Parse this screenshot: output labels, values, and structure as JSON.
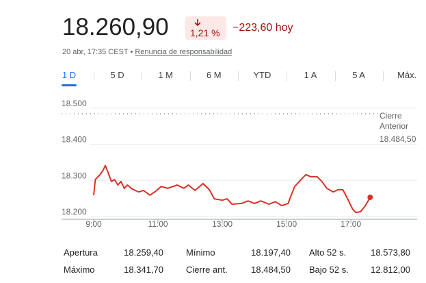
{
  "header": {
    "price": "18.260,90",
    "change_pct": "1,21 %",
    "change_abs": "−223,60 hoy",
    "timestamp": "20 abr, 17:35 CEST",
    "separator": "•",
    "disclaimer": "Renuncia de responsabilidad"
  },
  "tabs": [
    "1 D",
    "5 D",
    "1 M",
    "6 M",
    "YTD",
    "1 A",
    "5 A",
    "Máx."
  ],
  "active_tab": 0,
  "chart_data": {
    "type": "line",
    "color": "#d93025",
    "x": [
      9.0,
      9.05,
      9.2,
      9.3,
      9.36,
      9.45,
      9.55,
      9.65,
      9.75,
      9.85,
      9.95,
      10.05,
      10.2,
      10.4,
      10.55,
      10.75,
      10.9,
      11.1,
      11.3,
      11.6,
      11.8,
      11.95,
      12.15,
      12.4,
      12.6,
      12.75,
      13.0,
      13.15,
      13.3,
      13.6,
      13.8,
      14.0,
      14.2,
      14.45,
      14.65,
      14.85,
      15.05,
      15.1,
      15.25,
      15.45,
      15.6,
      15.75,
      15.95,
      16.1,
      16.25,
      16.45,
      16.6,
      16.75,
      16.9,
      17.05,
      17.15,
      17.3,
      17.45,
      17.6
    ],
    "values": [
      18259,
      18302,
      18316,
      18329,
      18341,
      18321,
      18297,
      18302,
      18287,
      18297,
      18278,
      18287,
      18276,
      18268,
      18272,
      18259,
      18268,
      18283,
      18278,
      18287,
      18278,
      18287,
      18272,
      18291,
      18274,
      18249,
      18245,
      18249,
      18234,
      18236,
      18243,
      18236,
      18243,
      18234,
      18241,
      18230,
      18236,
      18249,
      18283,
      18302,
      18316,
      18310,
      18310,
      18297,
      18278,
      18268,
      18274,
      18274,
      18249,
      18221,
      18211,
      18213,
      18230,
      18253
    ],
    "xlim": [
      8.0,
      19.06
    ],
    "ylim": [
      18196,
      18511
    ],
    "xticks": [
      {
        "value": 9,
        "label": "9:00"
      },
      {
        "value": 11,
        "label": "11:00"
      },
      {
        "value": 13,
        "label": "13:00"
      },
      {
        "value": 15,
        "label": "15:00"
      },
      {
        "value": 17,
        "label": "17:00"
      }
    ],
    "yticks": [
      {
        "value": 18200,
        "label": "18.200"
      },
      {
        "value": 18300,
        "label": "18.300"
      },
      {
        "value": 18400,
        "label": "18.400"
      },
      {
        "value": 18500,
        "label": "18.500"
      }
    ],
    "grid": true,
    "prev_close": {
      "value": 18484.5,
      "label": "18.484,50"
    },
    "prev_close_title": "Cierre Anterior"
  },
  "stats": [
    [
      "Apertura",
      "18.259,40",
      "Mínimo",
      "18.197,40",
      "Alto 52 s.",
      "18.573,80"
    ],
    [
      "Máximo",
      "18.341,70",
      "Cierre ant.",
      "18.484,50",
      "Bajo 52 s.",
      "12.812,00"
    ]
  ]
}
